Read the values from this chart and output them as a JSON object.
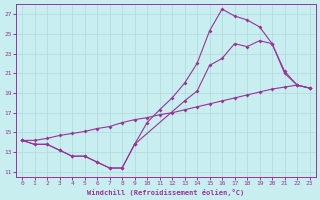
{
  "xlabel": "Windchill (Refroidissement éolien,°C)",
  "background_color": "#c8eef0",
  "line_color": "#993399",
  "xlim": [
    -0.5,
    23.5
  ],
  "ylim": [
    10.5,
    28.0
  ],
  "xticks": [
    0,
    1,
    2,
    3,
    4,
    5,
    6,
    7,
    8,
    9,
    10,
    11,
    12,
    13,
    14,
    15,
    16,
    17,
    18,
    19,
    20,
    21,
    22,
    23
  ],
  "yticks": [
    11,
    13,
    15,
    17,
    19,
    21,
    23,
    25,
    27
  ],
  "line1_x": [
    0,
    1,
    2,
    3,
    4,
    5,
    6,
    7,
    8,
    9,
    13,
    14,
    15,
    16,
    17,
    18,
    19,
    20,
    21,
    22,
    23
  ],
  "line1_y": [
    14.2,
    13.8,
    13.8,
    13.2,
    12.6,
    12.6,
    12.0,
    11.4,
    11.4,
    13.8,
    18.2,
    19.2,
    21.8,
    22.5,
    24.0,
    23.7,
    24.3,
    24.0,
    21.0,
    19.8,
    19.5
  ],
  "line2_x": [
    0,
    1,
    2,
    3,
    4,
    5,
    6,
    7,
    8,
    9,
    10,
    11,
    12,
    13,
    14,
    15,
    16,
    17,
    18,
    19,
    20,
    21,
    22,
    23
  ],
  "line2_y": [
    14.2,
    14.2,
    14.4,
    14.7,
    14.9,
    15.1,
    15.4,
    15.6,
    16.0,
    16.3,
    16.5,
    16.8,
    17.0,
    17.3,
    17.6,
    17.9,
    18.2,
    18.5,
    18.8,
    19.1,
    19.4,
    19.6,
    19.8,
    19.5
  ],
  "line3_x": [
    0,
    1,
    2,
    3,
    4,
    5,
    6,
    7,
    8,
    9,
    10,
    11,
    12,
    13,
    14,
    15,
    16,
    17,
    18,
    19,
    20,
    21,
    22,
    23
  ],
  "line3_y": [
    14.2,
    13.8,
    13.8,
    13.2,
    12.6,
    12.6,
    12.0,
    11.4,
    11.4,
    13.8,
    16.0,
    17.3,
    18.5,
    20.0,
    22.0,
    25.3,
    27.5,
    26.8,
    26.4,
    25.7,
    24.0,
    21.2,
    19.8,
    19.5
  ]
}
